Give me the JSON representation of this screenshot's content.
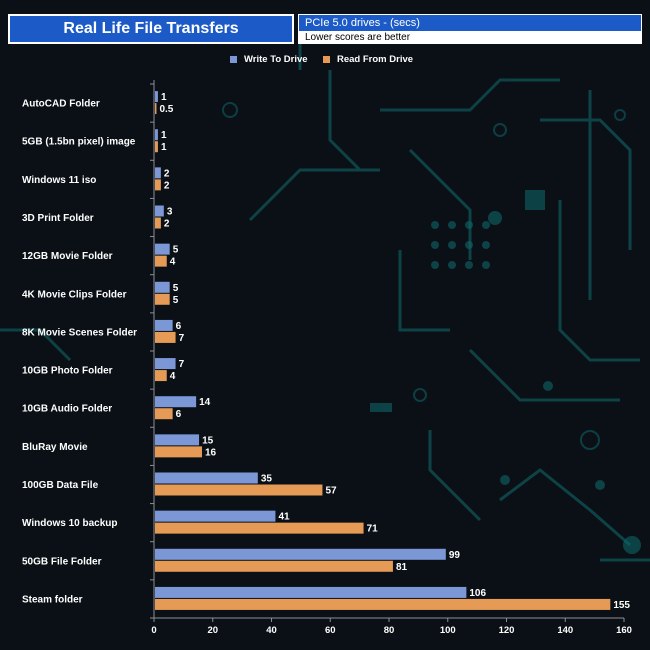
{
  "header": {
    "title": "Real Life File Transfers",
    "subtitle": "PCIe 5.0 drives - (secs)",
    "note": "Lower scores are better"
  },
  "colors": {
    "write": "#7b97d6",
    "read": "#e59a55",
    "title_bg": "#1c5bc7",
    "background": "#0b1016",
    "circuit": "#0f6b6e"
  },
  "chart_data": {
    "type": "bar",
    "orientation": "horizontal",
    "title": "Real Life File Transfers",
    "subtitle": "PCIe 5.0 drives - (secs)",
    "categories": [
      "AutoCAD Folder",
      "5GB (1.5bn pixel) image",
      "Windows 11 iso",
      "3D Print Folder",
      "12GB Movie Folder",
      "4K Movie Clips Folder",
      "8K Movie Scenes Folder",
      "10GB Photo Folder",
      "10GB Audio Folder",
      "BluRay Movie",
      "100GB Data File",
      "Windows 10 backup",
      "50GB File Folder",
      "Steam folder"
    ],
    "series": [
      {
        "name": "Write To  Drive",
        "color": "#7b97d6",
        "values": [
          1,
          1,
          2,
          3,
          5,
          5,
          6,
          7,
          14,
          15,
          35,
          41,
          99,
          106
        ],
        "labels": [
          "1",
          "1",
          "2",
          "3",
          "5",
          "5",
          "6",
          "7",
          "14",
          "15",
          "35",
          "41",
          "99",
          "106"
        ]
      },
      {
        "name": "Read From  Drive",
        "color": "#e59a55",
        "values": [
          0.5,
          1,
          2,
          2,
          4,
          5,
          7,
          4,
          6,
          16,
          57,
          71,
          81,
          155
        ],
        "labels": [
          "0.5",
          "1",
          "2",
          "2",
          "4",
          "5",
          "7",
          "4",
          "6",
          "16",
          "57",
          "71",
          "81",
          "155"
        ]
      }
    ],
    "xlim": [
      0,
      160
    ],
    "xticks": [
      "0",
      "20",
      "40",
      "60",
      "80",
      "100",
      "120",
      "140",
      "160"
    ],
    "xlabel": "",
    "ylabel": "",
    "grid": false,
    "legend_position": "top-center"
  }
}
